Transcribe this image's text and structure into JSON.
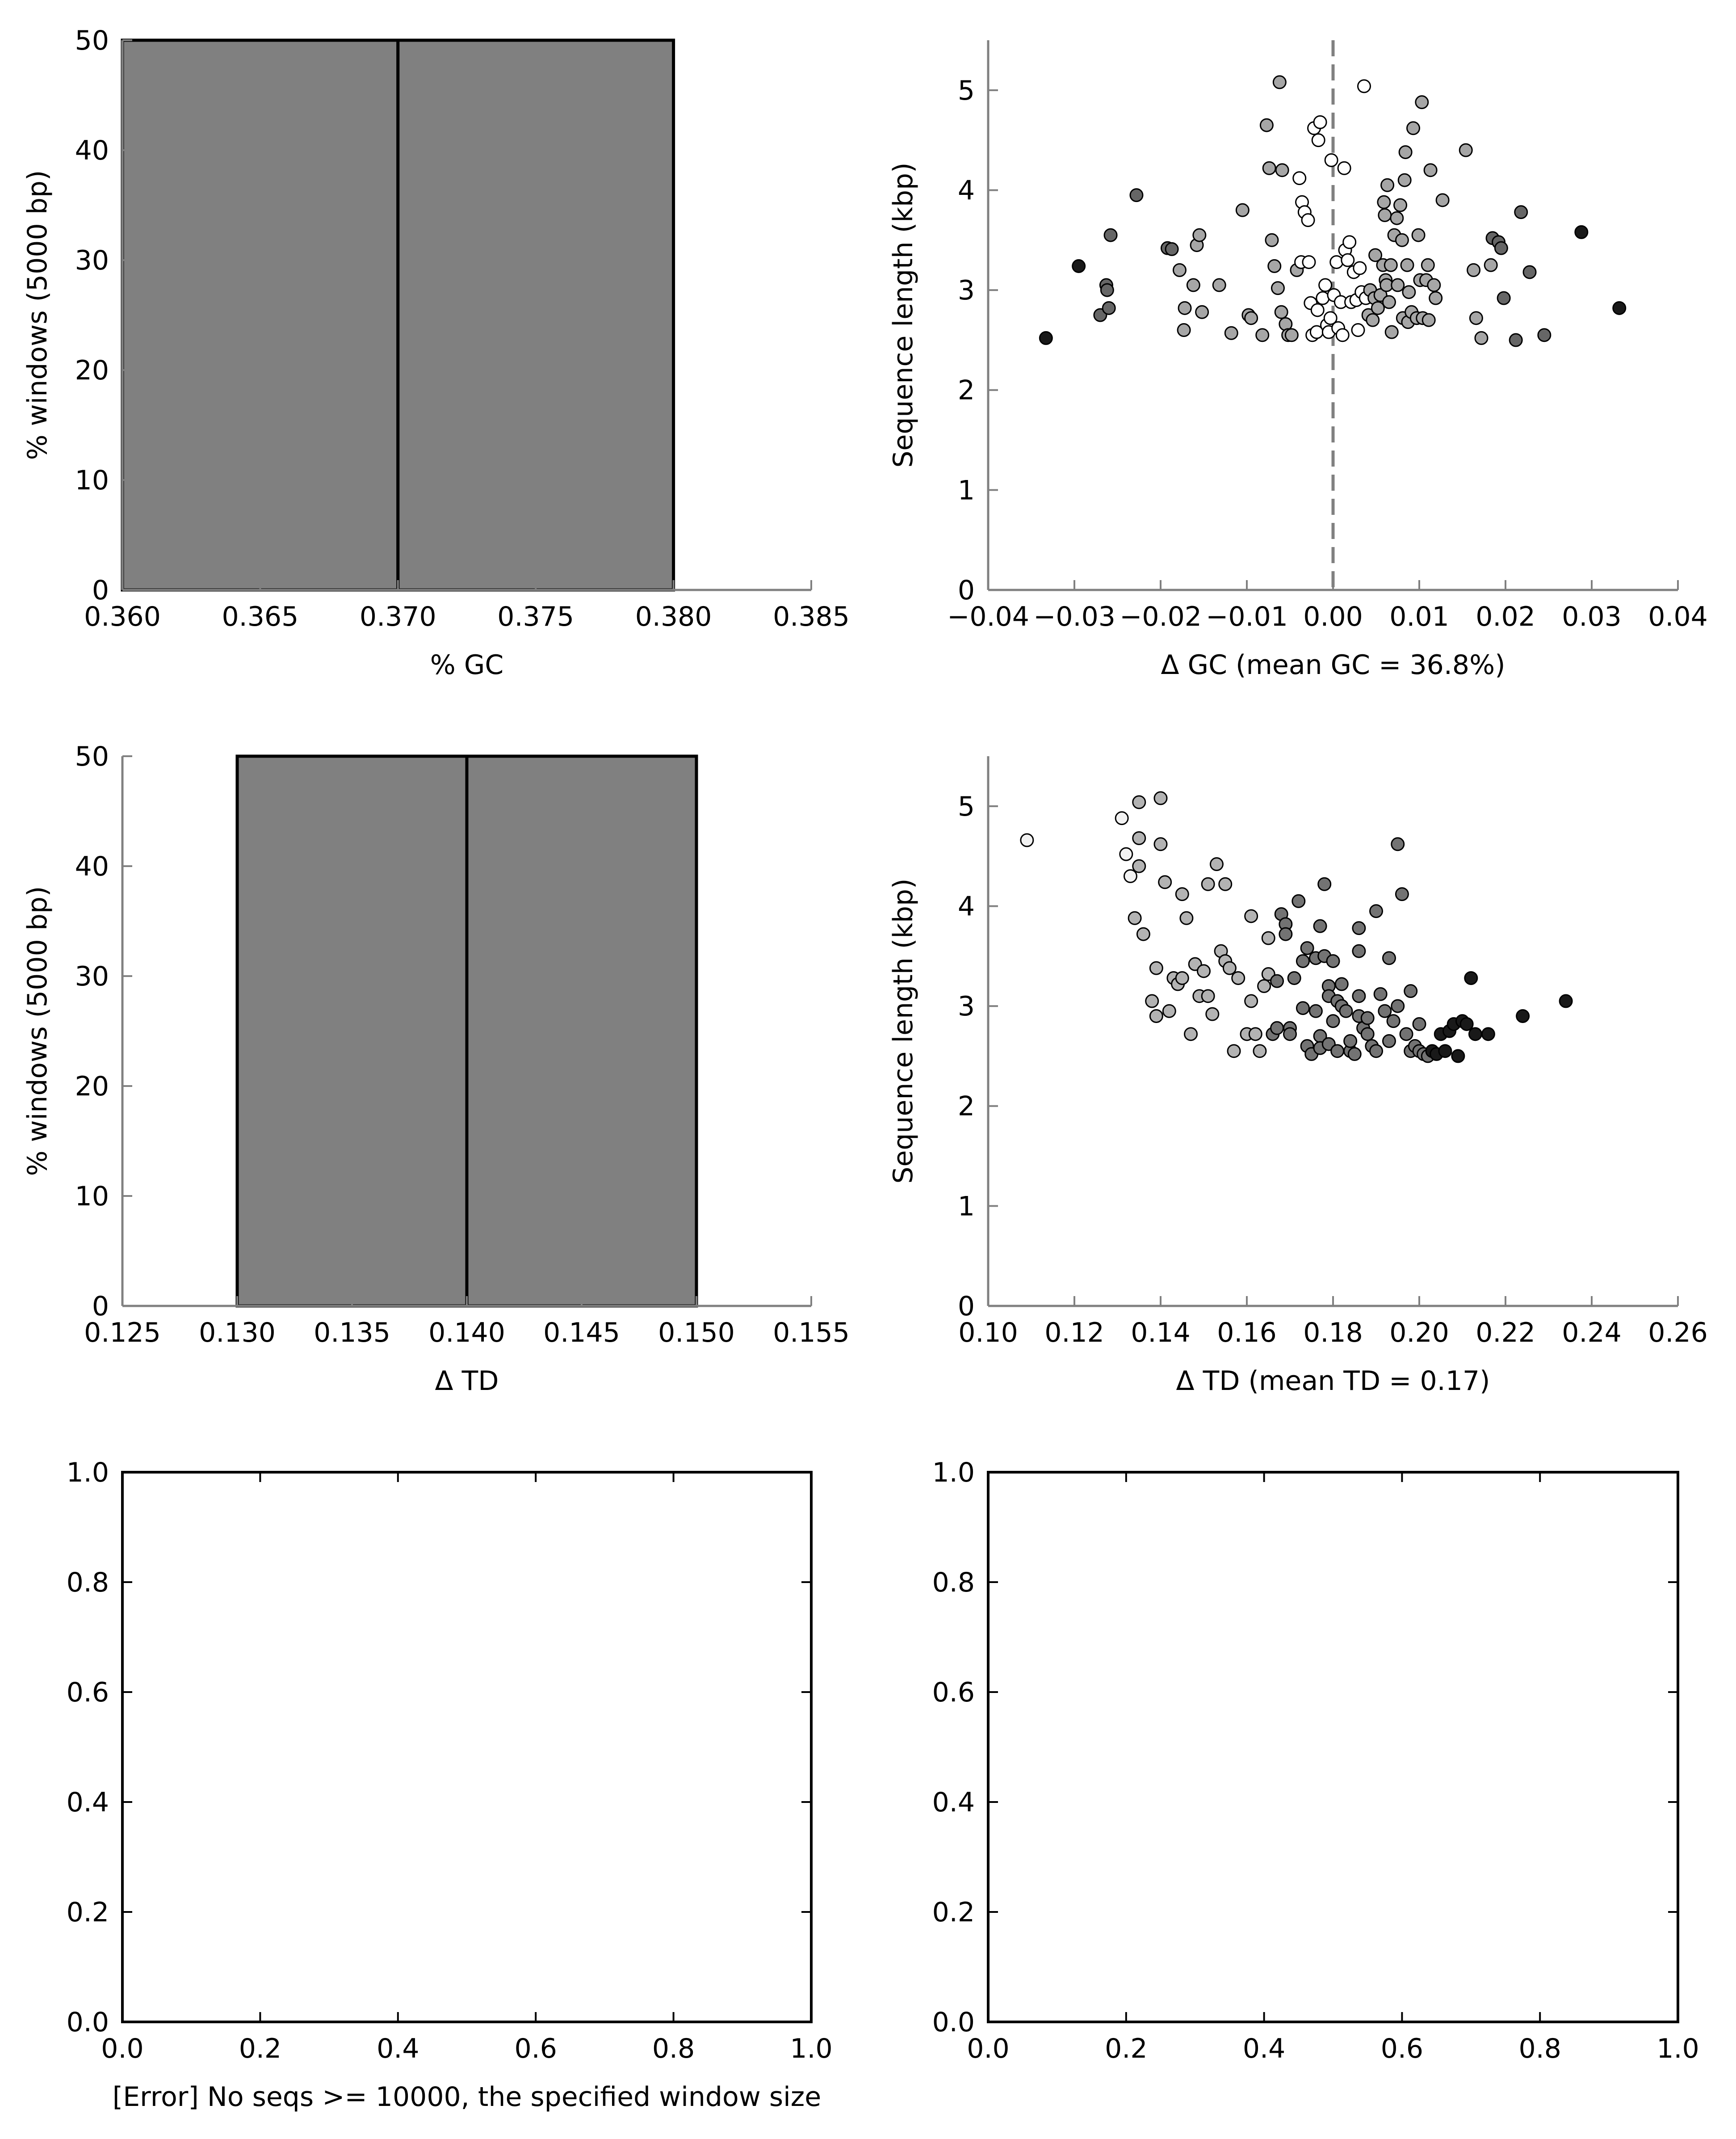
{
  "chart_data": [
    {
      "id": "gc_hist",
      "type": "bar",
      "xlabel": "% GC",
      "ylabel": "% windows (5000 bp)",
      "xlim": [
        0.36,
        0.385
      ],
      "ylim": [
        0,
        50
      ],
      "xticks": [
        "0.360",
        "0.365",
        "0.370",
        "0.375",
        "0.380",
        "0.385"
      ],
      "yticks": [
        "0",
        "10",
        "20",
        "30",
        "40",
        "50"
      ],
      "bars": [
        {
          "x0": 0.36,
          "x1": 0.37,
          "value": 50
        },
        {
          "x0": 0.37,
          "x1": 0.38,
          "value": 50
        }
      ],
      "bar_color": "#808080",
      "grid": false
    },
    {
      "id": "gc_scatter",
      "type": "scatter",
      "xlabel": "Δ GC (mean GC = 36.8%)",
      "ylabel": "Sequence length (kbp)",
      "xlim": [
        -0.04,
        0.04
      ],
      "ylim": [
        0,
        5.5
      ],
      "xticks": [
        "−0.04",
        "−0.03",
        "−0.02",
        "−0.01",
        "0.00",
        "0.01",
        "0.02",
        "0.03",
        "0.04"
      ],
      "yticks": [
        "0",
        "1",
        "2",
        "3",
        "4",
        "5"
      ],
      "reference_line_x": 0,
      "color_by": "distance from mean (white near 0, black far)",
      "points": [
        [
          -0.0333,
          2.52
        ],
        [
          -0.0295,
          3.24
        ],
        [
          -0.027,
          2.75
        ],
        [
          -0.0263,
          3.05
        ],
        [
          -0.0262,
          3.0
        ],
        [
          -0.026,
          2.82
        ],
        [
          -0.0258,
          3.55
        ],
        [
          -0.0228,
          3.95
        ],
        [
          -0.0192,
          3.42
        ],
        [
          -0.0187,
          3.41
        ],
        [
          -0.0178,
          3.2
        ],
        [
          -0.0173,
          2.6
        ],
        [
          -0.0172,
          2.82
        ],
        [
          -0.0162,
          3.05
        ],
        [
          -0.0158,
          3.45
        ],
        [
          -0.0155,
          3.55
        ],
        [
          -0.0152,
          2.78
        ],
        [
          -0.0132,
          3.05
        ],
        [
          -0.0118,
          2.57
        ],
        [
          -0.0105,
          3.8
        ],
        [
          -0.0098,
          2.75
        ],
        [
          -0.0095,
          2.72
        ],
        [
          -0.0082,
          2.55
        ],
        [
          -0.0077,
          4.65
        ],
        [
          -0.0074,
          4.22
        ],
        [
          -0.0071,
          3.5
        ],
        [
          -0.0068,
          3.24
        ],
        [
          -0.0064,
          3.02
        ],
        [
          -0.0062,
          5.08
        ],
        [
          -0.006,
          2.78
        ],
        [
          -0.0059,
          4.2
        ],
        [
          -0.0055,
          2.66
        ],
        [
          -0.0052,
          2.55
        ],
        [
          -0.0048,
          2.55
        ],
        [
          -0.0042,
          3.2
        ],
        [
          -0.0039,
          4.12
        ],
        [
          -0.0037,
          3.28
        ],
        [
          -0.0036,
          3.88
        ],
        [
          -0.0033,
          3.78
        ],
        [
          -0.0029,
          3.7
        ],
        [
          -0.0028,
          3.28
        ],
        [
          -0.0026,
          2.87
        ],
        [
          -0.0024,
          2.55
        ],
        [
          -0.0022,
          4.62
        ],
        [
          -0.0019,
          2.58
        ],
        [
          -0.0018,
          2.8
        ],
        [
          -0.0017,
          4.5
        ],
        [
          -0.0015,
          4.68
        ],
        [
          -0.0012,
          2.92
        ],
        [
          -0.0009,
          3.05
        ],
        [
          -0.0007,
          2.65
        ],
        [
          -0.0005,
          2.58
        ],
        [
          -0.0003,
          2.72
        ],
        [
          -0.0002,
          4.3
        ],
        [
          0.0001,
          2.95
        ],
        [
          0.0004,
          3.28
        ],
        [
          0.0006,
          2.62
        ],
        [
          0.0009,
          2.88
        ],
        [
          0.0011,
          2.55
        ],
        [
          0.0013,
          4.22
        ],
        [
          0.0014,
          3.4
        ],
        [
          0.0017,
          3.3
        ],
        [
          0.0019,
          3.48
        ],
        [
          0.0021,
          2.88
        ],
        [
          0.0024,
          3.18
        ],
        [
          0.0027,
          2.9
        ],
        [
          0.0029,
          2.6
        ],
        [
          0.0031,
          3.22
        ],
        [
          0.0033,
          2.98
        ],
        [
          0.0036,
          5.04
        ],
        [
          0.0038,
          2.92
        ],
        [
          0.0041,
          2.75
        ],
        [
          0.0043,
          3.0
        ],
        [
          0.0046,
          2.7
        ],
        [
          0.0048,
          2.92
        ],
        [
          0.0049,
          3.35
        ],
        [
          0.0052,
          2.82
        ],
        [
          0.0055,
          2.95
        ],
        [
          0.0058,
          3.25
        ],
        [
          0.0059,
          3.88
        ],
        [
          0.006,
          3.75
        ],
        [
          0.0061,
          3.1
        ],
        [
          0.0062,
          3.05
        ],
        [
          0.0063,
          4.05
        ],
        [
          0.0065,
          2.88
        ],
        [
          0.0067,
          3.25
        ],
        [
          0.0068,
          2.58
        ],
        [
          0.0071,
          3.55
        ],
        [
          0.0074,
          3.72
        ],
        [
          0.0075,
          3.05
        ],
        [
          0.0078,
          3.85
        ],
        [
          0.008,
          3.5
        ],
        [
          0.0081,
          2.72
        ],
        [
          0.0083,
          4.1
        ],
        [
          0.0084,
          4.38
        ],
        [
          0.0086,
          3.25
        ],
        [
          0.0087,
          2.68
        ],
        [
          0.0088,
          2.98
        ],
        [
          0.0091,
          2.78
        ],
        [
          0.0093,
          4.62
        ],
        [
          0.0097,
          2.72
        ],
        [
          0.0099,
          3.55
        ],
        [
          0.0101,
          3.1
        ],
        [
          0.0103,
          4.88
        ],
        [
          0.0104,
          2.72
        ],
        [
          0.0108,
          3.1
        ],
        [
          0.011,
          3.25
        ],
        [
          0.0111,
          2.7
        ],
        [
          0.0113,
          4.2
        ],
        [
          0.0117,
          3.05
        ],
        [
          0.0119,
          2.92
        ],
        [
          0.0127,
          3.9
        ],
        [
          0.0154,
          4.4
        ],
        [
          0.0163,
          3.2
        ],
        [
          0.0166,
          2.72
        ],
        [
          0.0172,
          2.52
        ],
        [
          0.0183,
          3.25
        ],
        [
          0.0185,
          3.52
        ],
        [
          0.0192,
          3.48
        ],
        [
          0.0195,
          3.42
        ],
        [
          0.0198,
          2.92
        ],
        [
          0.0212,
          2.5
        ],
        [
          0.0218,
          3.78
        ],
        [
          0.0228,
          3.18
        ],
        [
          0.0245,
          2.55
        ],
        [
          0.0288,
          3.58
        ],
        [
          0.0332,
          2.82
        ]
      ]
    },
    {
      "id": "td_hist",
      "type": "bar",
      "xlabel": "Δ TD",
      "ylabel": "% windows (5000 bp)",
      "xlim": [
        0.125,
        0.155
      ],
      "ylim": [
        0,
        50
      ],
      "xticks": [
        "0.125",
        "0.130",
        "0.135",
        "0.140",
        "0.145",
        "0.150",
        "0.155"
      ],
      "yticks": [
        "0",
        "10",
        "20",
        "30",
        "40",
        "50"
      ],
      "bars": [
        {
          "x0": 0.13,
          "x1": 0.14,
          "value": 50
        },
        {
          "x0": 0.14,
          "x1": 0.15,
          "value": 50
        }
      ],
      "bar_color": "#808080",
      "grid": false
    },
    {
      "id": "td_scatter",
      "type": "scatter",
      "xlabel": "Δ TD (mean TD = 0.17)",
      "ylabel": "Sequence length (kbp)",
      "xlim": [
        0.1,
        0.26
      ],
      "ylim": [
        0,
        5.5
      ],
      "xticks": [
        "0.10",
        "0.12",
        "0.14",
        "0.16",
        "0.18",
        "0.20",
        "0.22",
        "0.24",
        "0.26"
      ],
      "yticks": [
        "0",
        "1",
        "2",
        "3",
        "4",
        "5"
      ],
      "color_by": "TD value (white low, black high)",
      "points": [
        [
          0.109,
          4.66
        ],
        [
          0.131,
          4.88
        ],
        [
          0.132,
          4.52
        ],
        [
          0.133,
          4.3
        ],
        [
          0.134,
          3.88
        ],
        [
          0.135,
          5.04
        ],
        [
          0.135,
          4.68
        ],
        [
          0.135,
          4.4
        ],
        [
          0.136,
          3.72
        ],
        [
          0.138,
          3.05
        ],
        [
          0.139,
          3.38
        ],
        [
          0.139,
          2.9
        ],
        [
          0.14,
          5.08
        ],
        [
          0.14,
          4.62
        ],
        [
          0.141,
          4.24
        ],
        [
          0.142,
          2.95
        ],
        [
          0.143,
          3.28
        ],
        [
          0.144,
          3.22
        ],
        [
          0.145,
          4.12
        ],
        [
          0.145,
          3.28
        ],
        [
          0.146,
          3.88
        ],
        [
          0.147,
          2.72
        ],
        [
          0.148,
          3.42
        ],
        [
          0.149,
          3.1
        ],
        [
          0.15,
          3.35
        ],
        [
          0.151,
          3.1
        ],
        [
          0.151,
          4.22
        ],
        [
          0.152,
          2.92
        ],
        [
          0.153,
          4.42
        ],
        [
          0.154,
          3.55
        ],
        [
          0.155,
          4.22
        ],
        [
          0.155,
          3.45
        ],
        [
          0.156,
          3.38
        ],
        [
          0.157,
          2.55
        ],
        [
          0.158,
          3.28
        ],
        [
          0.16,
          2.72
        ],
        [
          0.161,
          3.9
        ],
        [
          0.161,
          3.05
        ],
        [
          0.162,
          2.72
        ],
        [
          0.163,
          2.55
        ],
        [
          0.164,
          3.2
        ],
        [
          0.165,
          3.68
        ],
        [
          0.165,
          3.32
        ],
        [
          0.166,
          2.72
        ],
        [
          0.167,
          2.78
        ],
        [
          0.167,
          3.25
        ],
        [
          0.168,
          3.92
        ],
        [
          0.169,
          3.82
        ],
        [
          0.169,
          3.72
        ],
        [
          0.17,
          2.78
        ],
        [
          0.17,
          2.72
        ],
        [
          0.171,
          3.28
        ],
        [
          0.172,
          4.05
        ],
        [
          0.173,
          3.45
        ],
        [
          0.173,
          2.98
        ],
        [
          0.174,
          3.58
        ],
        [
          0.174,
          2.6
        ],
        [
          0.175,
          2.52
        ],
        [
          0.176,
          3.48
        ],
        [
          0.176,
          2.95
        ],
        [
          0.177,
          3.8
        ],
        [
          0.177,
          2.7
        ],
        [
          0.177,
          2.58
        ],
        [
          0.178,
          4.22
        ],
        [
          0.178,
          3.5
        ],
        [
          0.179,
          3.2
        ],
        [
          0.179,
          3.1
        ],
        [
          0.179,
          2.62
        ],
        [
          0.18,
          3.45
        ],
        [
          0.18,
          2.85
        ],
        [
          0.181,
          2.55
        ],
        [
          0.181,
          3.05
        ],
        [
          0.182,
          3.22
        ],
        [
          0.182,
          3.0
        ],
        [
          0.183,
          2.95
        ],
        [
          0.184,
          2.55
        ],
        [
          0.184,
          2.65
        ],
        [
          0.185,
          2.52
        ],
        [
          0.186,
          3.1
        ],
        [
          0.186,
          2.9
        ],
        [
          0.187,
          2.78
        ],
        [
          0.188,
          2.88
        ],
        [
          0.188,
          2.72
        ],
        [
          0.189,
          2.6
        ],
        [
          0.19,
          2.55
        ],
        [
          0.191,
          3.12
        ],
        [
          0.192,
          2.95
        ],
        [
          0.193,
          2.65
        ],
        [
          0.194,
          2.85
        ],
        [
          0.195,
          4.62
        ],
        [
          0.195,
          3.0
        ],
        [
          0.196,
          4.12
        ],
        [
          0.197,
          2.72
        ],
        [
          0.198,
          2.55
        ],
        [
          0.199,
          2.6
        ],
        [
          0.2,
          2.55
        ],
        [
          0.201,
          2.52
        ],
        [
          0.202,
          2.5
        ],
        [
          0.203,
          2.55
        ],
        [
          0.204,
          2.52
        ],
        [
          0.205,
          2.72
        ],
        [
          0.206,
          2.55
        ],
        [
          0.207,
          2.75
        ],
        [
          0.208,
          2.82
        ],
        [
          0.209,
          2.5
        ],
        [
          0.21,
          2.85
        ],
        [
          0.211,
          2.82
        ],
        [
          0.212,
          3.28
        ],
        [
          0.213,
          2.72
        ],
        [
          0.216,
          2.72
        ],
        [
          0.224,
          2.9
        ],
        [
          0.234,
          3.05
        ],
        [
          0.186,
          3.78
        ],
        [
          0.186,
          3.55
        ],
        [
          0.19,
          3.95
        ],
        [
          0.193,
          3.48
        ],
        [
          0.198,
          3.15
        ],
        [
          0.2,
          2.82
        ]
      ]
    },
    {
      "id": "empty_left",
      "type": "scatter",
      "xlim": [
        0,
        1
      ],
      "ylim": [
        0,
        1
      ],
      "xticks": [
        "0.0",
        "0.2",
        "0.4",
        "0.6",
        "0.8",
        "1.0"
      ],
      "yticks": [
        "0.0",
        "0.2",
        "0.4",
        "0.6",
        "0.8",
        "1.0"
      ],
      "points": [],
      "xlabel": "[Error] No seqs >= 10000, the specified window size"
    },
    {
      "id": "empty_right",
      "type": "scatter",
      "xlim": [
        0,
        1
      ],
      "ylim": [
        0,
        1
      ],
      "xticks": [
        "0.0",
        "0.2",
        "0.4",
        "0.6",
        "0.8",
        "1.0"
      ],
      "yticks": [
        "0.0",
        "0.2",
        "0.4",
        "0.6",
        "0.8",
        "1.0"
      ],
      "points": []
    }
  ]
}
